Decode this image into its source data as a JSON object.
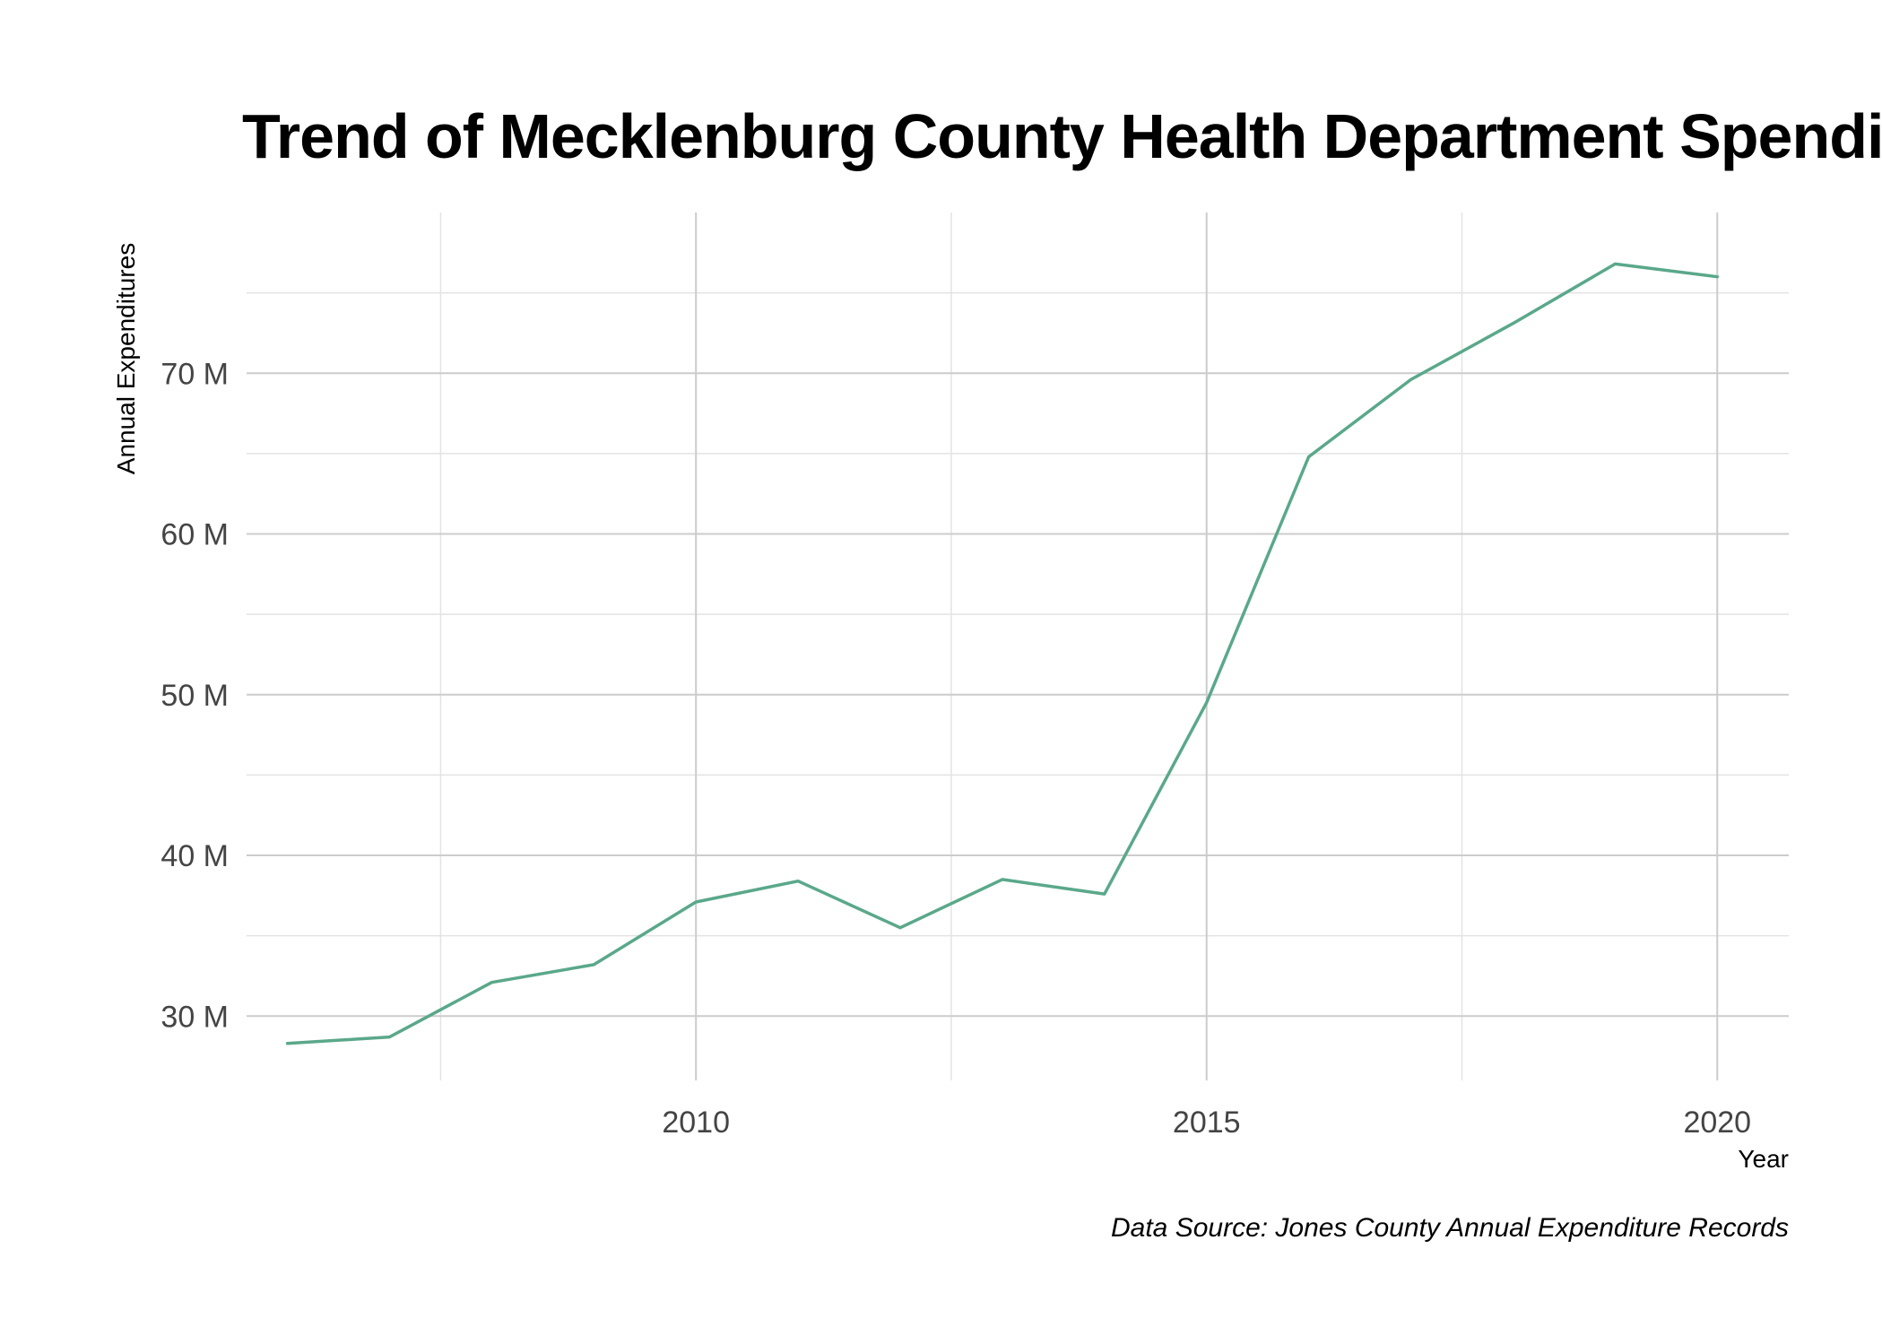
{
  "chart_data": {
    "type": "line",
    "title": "Trend of Mecklenburg County Health Department Spending",
    "xlabel": "Year",
    "ylabel": "Annual Expenditures",
    "caption": "Data Source: Jones County Annual Expenditure Records",
    "x_ticks": [
      2010,
      2015,
      2020
    ],
    "x_tick_labels": [
      "2010",
      "2015",
      "2020"
    ],
    "y_ticks": [
      30,
      40,
      50,
      60,
      70
    ],
    "y_tick_labels": [
      "30 M",
      "40 M",
      "50 M",
      "60 M",
      "70 M"
    ],
    "xlim": [
      2005.6,
      2020.7
    ],
    "ylim": [
      26,
      80
    ],
    "y_unit": "millions",
    "grid": true,
    "line_color": "#5aa88a",
    "series": [
      {
        "x": [
          2006,
          2007,
          2008,
          2009,
          2010,
          2011,
          2012,
          2013,
          2014,
          2015,
          2016,
          2017,
          2018,
          2019,
          2020
        ],
        "values": [
          28.3,
          28.7,
          32.1,
          33.2,
          37.1,
          38.4,
          35.5,
          38.5,
          37.6,
          49.5,
          64.8,
          69.6,
          73.1,
          76.8,
          76.0
        ]
      }
    ]
  }
}
